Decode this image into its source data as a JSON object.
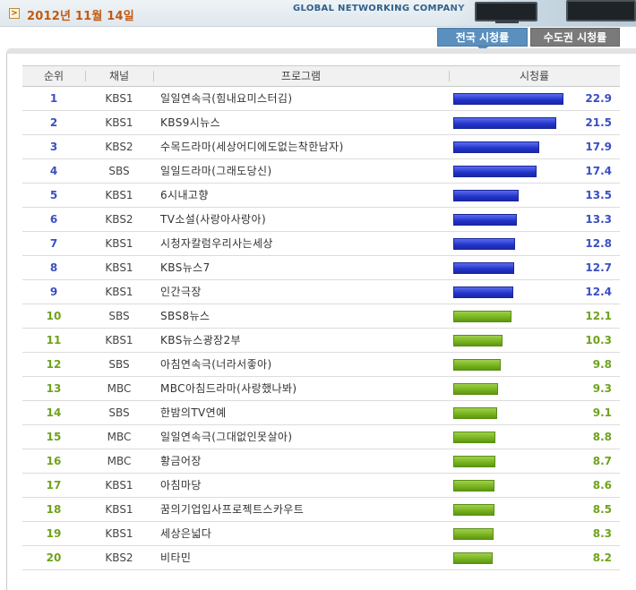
{
  "header": {
    "date": "2012년 11월 14일",
    "company": "GLOBAL NETWORKING COMPANY",
    "date_icon": ">"
  },
  "tabs": [
    {
      "label": "전국 시청률",
      "active": true
    },
    {
      "label": "수도권 시청률",
      "active": false
    }
  ],
  "table": {
    "columns": [
      "순위",
      "채널",
      "프로그램",
      "시청률"
    ],
    "max_rating": 22.9,
    "rows": [
      {
        "rank": "1",
        "channel": "KBS1",
        "program": "일일연속극(힘내요미스터김)",
        "rating": "22.9",
        "color": "blue"
      },
      {
        "rank": "2",
        "channel": "KBS1",
        "program": "KBS9시뉴스",
        "rating": "21.5",
        "color": "blue"
      },
      {
        "rank": "3",
        "channel": "KBS2",
        "program": "수목드라마(세상어디에도없는착한남자)",
        "rating": "17.9",
        "color": "blue"
      },
      {
        "rank": "4",
        "channel": "SBS",
        "program": "일일드라마(그래도당신)",
        "rating": "17.4",
        "color": "blue"
      },
      {
        "rank": "5",
        "channel": "KBS1",
        "program": "6시내고향",
        "rating": "13.5",
        "color": "blue"
      },
      {
        "rank": "6",
        "channel": "KBS2",
        "program": "TV소설(사랑아사랑아)",
        "rating": "13.3",
        "color": "blue"
      },
      {
        "rank": "7",
        "channel": "KBS1",
        "program": "시청자칼럼우리사는세상",
        "rating": "12.8",
        "color": "blue"
      },
      {
        "rank": "8",
        "channel": "KBS1",
        "program": "KBS뉴스7",
        "rating": "12.7",
        "color": "blue"
      },
      {
        "rank": "9",
        "channel": "KBS1",
        "program": "인간극장",
        "rating": "12.4",
        "color": "blue"
      },
      {
        "rank": "10",
        "channel": "SBS",
        "program": "SBS8뉴스",
        "rating": "12.1",
        "color": "green"
      },
      {
        "rank": "11",
        "channel": "KBS1",
        "program": "KBS뉴스광장2부",
        "rating": "10.3",
        "color": "green"
      },
      {
        "rank": "12",
        "channel": "SBS",
        "program": "아침연속극(너라서좋아)",
        "rating": "9.8",
        "color": "green"
      },
      {
        "rank": "13",
        "channel": "MBC",
        "program": "MBC아침드라마(사랑했나봐)",
        "rating": "9.3",
        "color": "green"
      },
      {
        "rank": "14",
        "channel": "SBS",
        "program": "한밤의TV연예",
        "rating": "9.1",
        "color": "green"
      },
      {
        "rank": "15",
        "channel": "MBC",
        "program": "일일연속극(그대없인못살아)",
        "rating": "8.8",
        "color": "green"
      },
      {
        "rank": "16",
        "channel": "MBC",
        "program": "황금어장",
        "rating": "8.7",
        "color": "green"
      },
      {
        "rank": "17",
        "channel": "KBS1",
        "program": "아침마당",
        "rating": "8.6",
        "color": "green"
      },
      {
        "rank": "18",
        "channel": "KBS1",
        "program": "꿈의기업입사프로젝트스카우트",
        "rating": "8.5",
        "color": "green"
      },
      {
        "rank": "19",
        "channel": "KBS1",
        "program": "세상은넓다",
        "rating": "8.3",
        "color": "green"
      },
      {
        "rank": "20",
        "channel": "KBS2",
        "program": "비타민",
        "rating": "8.2",
        "color": "green"
      }
    ]
  },
  "colors": {
    "bar_top": "#2233c8",
    "bar_rest": "#76b21d",
    "date_text": "#c25a10",
    "tab_active": "#5a8fbe",
    "tab_inactive": "#7a7a7a"
  }
}
